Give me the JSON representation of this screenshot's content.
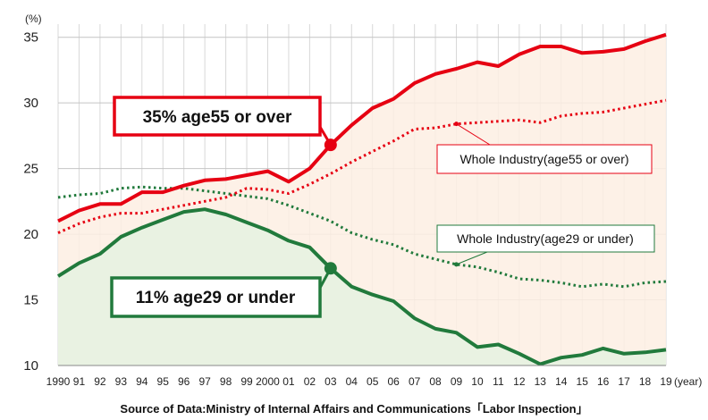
{
  "chart_data": {
    "type": "line",
    "title": "",
    "xlabel": "",
    "ylabel": "",
    "y_unit": "(%)",
    "x_unit": "(year)",
    "ylim": [
      10,
      36
    ],
    "yticks": [
      10,
      15,
      20,
      25,
      30,
      35
    ],
    "grid": true,
    "x": [
      1990,
      1991,
      1992,
      1993,
      1994,
      1995,
      1996,
      1997,
      1998,
      1999,
      2000,
      2001,
      2002,
      2003,
      2004,
      2005,
      2006,
      2007,
      2008,
      2009,
      2010,
      2011,
      2012,
      2013,
      2014,
      2015,
      2016,
      2017,
      2018,
      2019
    ],
    "x_tick_labels": [
      "1990",
      "91",
      "92",
      "93",
      "94",
      "95",
      "96",
      "97",
      "98",
      "99",
      "2000",
      "01",
      "02",
      "03",
      "04",
      "05",
      "06",
      "07",
      "08",
      "09",
      "10",
      "11",
      "12",
      "13",
      "14",
      "15",
      "16",
      "17",
      "18",
      "19"
    ],
    "series": [
      {
        "name": "35% age55 or over",
        "style": "solid",
        "color": "#e60012",
        "values": [
          21.0,
          21.8,
          22.3,
          22.3,
          23.2,
          23.2,
          23.7,
          24.1,
          24.2,
          24.5,
          24.8,
          24.0,
          25.0,
          26.8,
          28.3,
          29.6,
          30.3,
          31.5,
          32.2,
          32.6,
          33.1,
          32.8,
          33.7,
          34.3,
          34.3,
          33.8,
          33.9,
          34.1,
          34.7,
          35.2
        ]
      },
      {
        "name": "Whole Industry(age55 or over)",
        "style": "dotted",
        "color": "#e60012",
        "values": [
          20.1,
          20.8,
          21.3,
          21.6,
          21.6,
          21.9,
          22.2,
          22.5,
          22.8,
          23.5,
          23.4,
          23.1,
          23.8,
          24.6,
          25.5,
          26.3,
          27.1,
          28.0,
          28.1,
          28.4,
          28.5,
          28.6,
          28.7,
          28.5,
          29.0,
          29.2,
          29.3,
          29.6,
          29.9,
          30.2
        ]
      },
      {
        "name": "Whole Industry(age29 or under)",
        "style": "dotted",
        "color": "#217a3c",
        "values": [
          22.8,
          23.0,
          23.1,
          23.5,
          23.6,
          23.5,
          23.5,
          23.3,
          23.1,
          22.9,
          22.7,
          22.2,
          21.6,
          21.0,
          20.1,
          19.6,
          19.2,
          18.5,
          18.1,
          17.7,
          17.5,
          17.1,
          16.6,
          16.5,
          16.3,
          16.0,
          16.2,
          16.0,
          16.3,
          16.4
        ]
      },
      {
        "name": "11% age29 or under",
        "style": "solid",
        "color": "#217a3c",
        "values": [
          16.8,
          17.8,
          18.5,
          19.8,
          20.5,
          21.1,
          21.7,
          21.9,
          21.5,
          20.9,
          20.3,
          19.5,
          19.0,
          17.4,
          16.0,
          15.4,
          14.9,
          13.6,
          12.8,
          12.5,
          11.4,
          11.6,
          10.9,
          10.1,
          10.6,
          10.8,
          11.3,
          10.9,
          11.0,
          11.2
        ]
      }
    ],
    "annotations": {
      "age55_callout": "35% age55 or over",
      "age29_callout": "11% age29 or under",
      "whole55_label": "Whole Industry(age55 or over)",
      "whole29_label": "Whole Industry(age29 or under)"
    },
    "source": "Source of Data:Ministry of Internal Affairs and Communications「Labor Inspection」"
  }
}
